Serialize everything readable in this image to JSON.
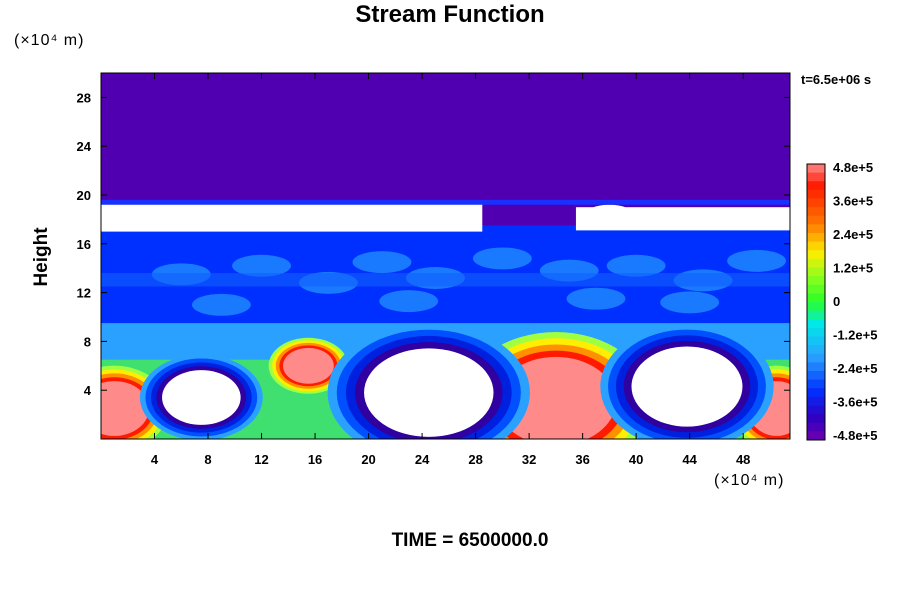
{
  "chart_data": {
    "type": "heatmap",
    "title": "Stream Function",
    "ylabel": "Height",
    "x_unit": "(×10⁴ m)",
    "y_unit": "(×10⁴ m)",
    "timestamp": "t=6.5e+06 s",
    "footer": "TIME = 6500000.0",
    "xlim": [
      0,
      51.5
    ],
    "ylim": [
      0,
      30
    ],
    "x_ticks": [
      "4",
      "8",
      "12",
      "16",
      "20",
      "24",
      "28",
      "32",
      "36",
      "40",
      "44",
      "48"
    ],
    "x_tick_values": [
      4,
      8,
      12,
      16,
      20,
      24,
      28,
      32,
      36,
      40,
      44,
      48
    ],
    "y_ticks": [
      "4",
      "8",
      "12",
      "16",
      "20",
      "24",
      "28"
    ],
    "y_tick_values": [
      4,
      8,
      12,
      16,
      20,
      24,
      28
    ],
    "colorbar": {
      "range": [
        -480000,
        480000
      ],
      "labels": [
        "4.8e+5",
        "3.6e+5",
        "2.4e+5",
        "1.2e+5",
        "0",
        "-1.2e+5",
        "-2.4e+5",
        "-3.6e+5",
        "-4.8e+5"
      ],
      "label_values": [
        480000,
        360000,
        240000,
        120000,
        0,
        -120000,
        -240000,
        -360000,
        -480000
      ]
    },
    "features": [
      {
        "kind": "positive",
        "x": 1,
        "y": 2.5,
        "rx": 3,
        "ry": 2.6,
        "value": 480000
      },
      {
        "kind": "positive",
        "x": 15.5,
        "y": 6,
        "rx": 2.2,
        "ry": 1.7,
        "value": 420000
      },
      {
        "kind": "positive",
        "x": 34,
        "y": 3.1,
        "rx": 5.2,
        "ry": 4.2,
        "value": 480000
      },
      {
        "kind": "positive",
        "x": 50.5,
        "y": 2.5,
        "rx": 2.5,
        "ry": 2.6,
        "value": 480000
      },
      {
        "kind": "negative",
        "x": 7.5,
        "y": 3.4,
        "rx": 3.4,
        "ry": 2.6,
        "value": -480000
      },
      {
        "kind": "negative",
        "x": 24.5,
        "y": 3.8,
        "rx": 5.6,
        "ry": 4.2,
        "value": -480000
      },
      {
        "kind": "negative",
        "x": 43.8,
        "y": 4.3,
        "rx": 4.8,
        "ry": 3.8,
        "value": -480000
      }
    ],
    "colors": {
      "purple": "#5000b0",
      "blue": "#0030ff",
      "cyan": "#00e8e8",
      "green": "#28ff28",
      "yellow": "#ffee00",
      "red": "#ff1a00",
      "pink": "#ff8a8a",
      "white_overflow": "#ffffff"
    }
  }
}
